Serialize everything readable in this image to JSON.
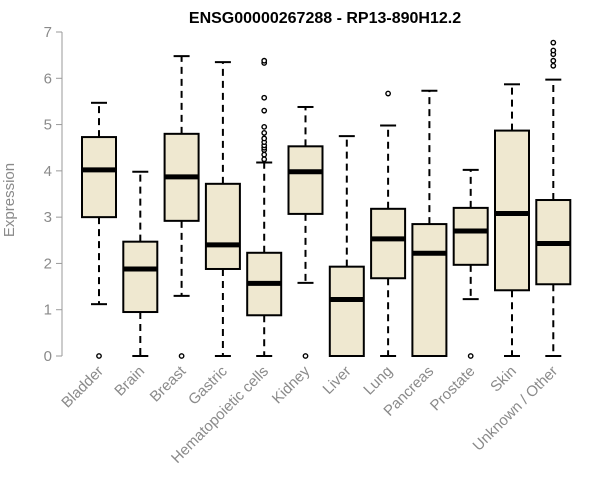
{
  "chart_data": {
    "type": "boxplot",
    "title": "ENSG00000267288 - RP13-890H12.2",
    "xlabel": "",
    "ylabel": "Expression",
    "ylim": [
      0,
      7
    ],
    "yticks": [
      0,
      1,
      2,
      3,
      4,
      5,
      6,
      7
    ],
    "grid": false,
    "box_fill": "#efe8d0",
    "categories": [
      "Bladder",
      "Brain",
      "Breast",
      "Gastric",
      "Hematopoietic cells",
      "Kidney",
      "Liver",
      "Lung",
      "Pancreas",
      "Prostate",
      "Skin",
      "Unknown / Other"
    ],
    "boxes": [
      {
        "name": "Bladder",
        "whisker_low": 1.12,
        "q1": 3.0,
        "median": 4.02,
        "q3": 4.73,
        "whisker_high": 5.47,
        "outliers": [
          0.0
        ]
      },
      {
        "name": "Brain",
        "whisker_low": 0.0,
        "q1": 0.95,
        "median": 1.88,
        "q3": 2.47,
        "whisker_high": 3.98,
        "outliers": []
      },
      {
        "name": "Breast",
        "whisker_low": 1.3,
        "q1": 2.92,
        "median": 3.87,
        "q3": 4.8,
        "whisker_high": 6.48,
        "outliers": [
          0.0
        ]
      },
      {
        "name": "Gastric",
        "whisker_low": 0.0,
        "q1": 1.88,
        "median": 2.4,
        "q3": 3.72,
        "whisker_high": 6.35,
        "outliers": []
      },
      {
        "name": "Hematopoietic cells",
        "whisker_low": 0.0,
        "q1": 0.88,
        "median": 1.57,
        "q3": 2.23,
        "whisker_high": 4.18,
        "outliers": [
          4.25,
          4.35,
          4.45,
          4.5,
          4.55,
          4.62,
          4.7,
          4.82,
          4.95,
          5.3,
          5.58,
          6.33,
          6.38
        ]
      },
      {
        "name": "Kidney",
        "whisker_low": 1.58,
        "q1": 3.07,
        "median": 3.98,
        "q3": 4.53,
        "whisker_high": 5.38,
        "outliers": [
          0.0
        ]
      },
      {
        "name": "Liver",
        "whisker_low": 0.0,
        "q1": 0.0,
        "median": 1.22,
        "q3": 1.93,
        "whisker_high": 4.75,
        "outliers": []
      },
      {
        "name": "Lung",
        "whisker_low": 0.0,
        "q1": 1.68,
        "median": 2.53,
        "q3": 3.18,
        "whisker_high": 4.98,
        "outliers": [
          5.67
        ]
      },
      {
        "name": "Pancreas",
        "whisker_low": 0.0,
        "q1": 0.0,
        "median": 2.22,
        "q3": 2.85,
        "whisker_high": 5.73,
        "outliers": []
      },
      {
        "name": "Prostate",
        "whisker_low": 1.23,
        "q1": 1.97,
        "median": 2.7,
        "q3": 3.2,
        "whisker_high": 4.02,
        "outliers": [
          0.0
        ]
      },
      {
        "name": "Skin",
        "whisker_low": 0.0,
        "q1": 1.42,
        "median": 3.08,
        "q3": 4.87,
        "whisker_high": 5.87,
        "outliers": []
      },
      {
        "name": "Unknown / Other",
        "whisker_low": 0.0,
        "q1": 1.55,
        "median": 2.43,
        "q3": 3.37,
        "whisker_high": 5.97,
        "outliers": [
          6.27,
          6.38,
          6.52,
          6.6,
          6.77
        ]
      }
    ]
  }
}
